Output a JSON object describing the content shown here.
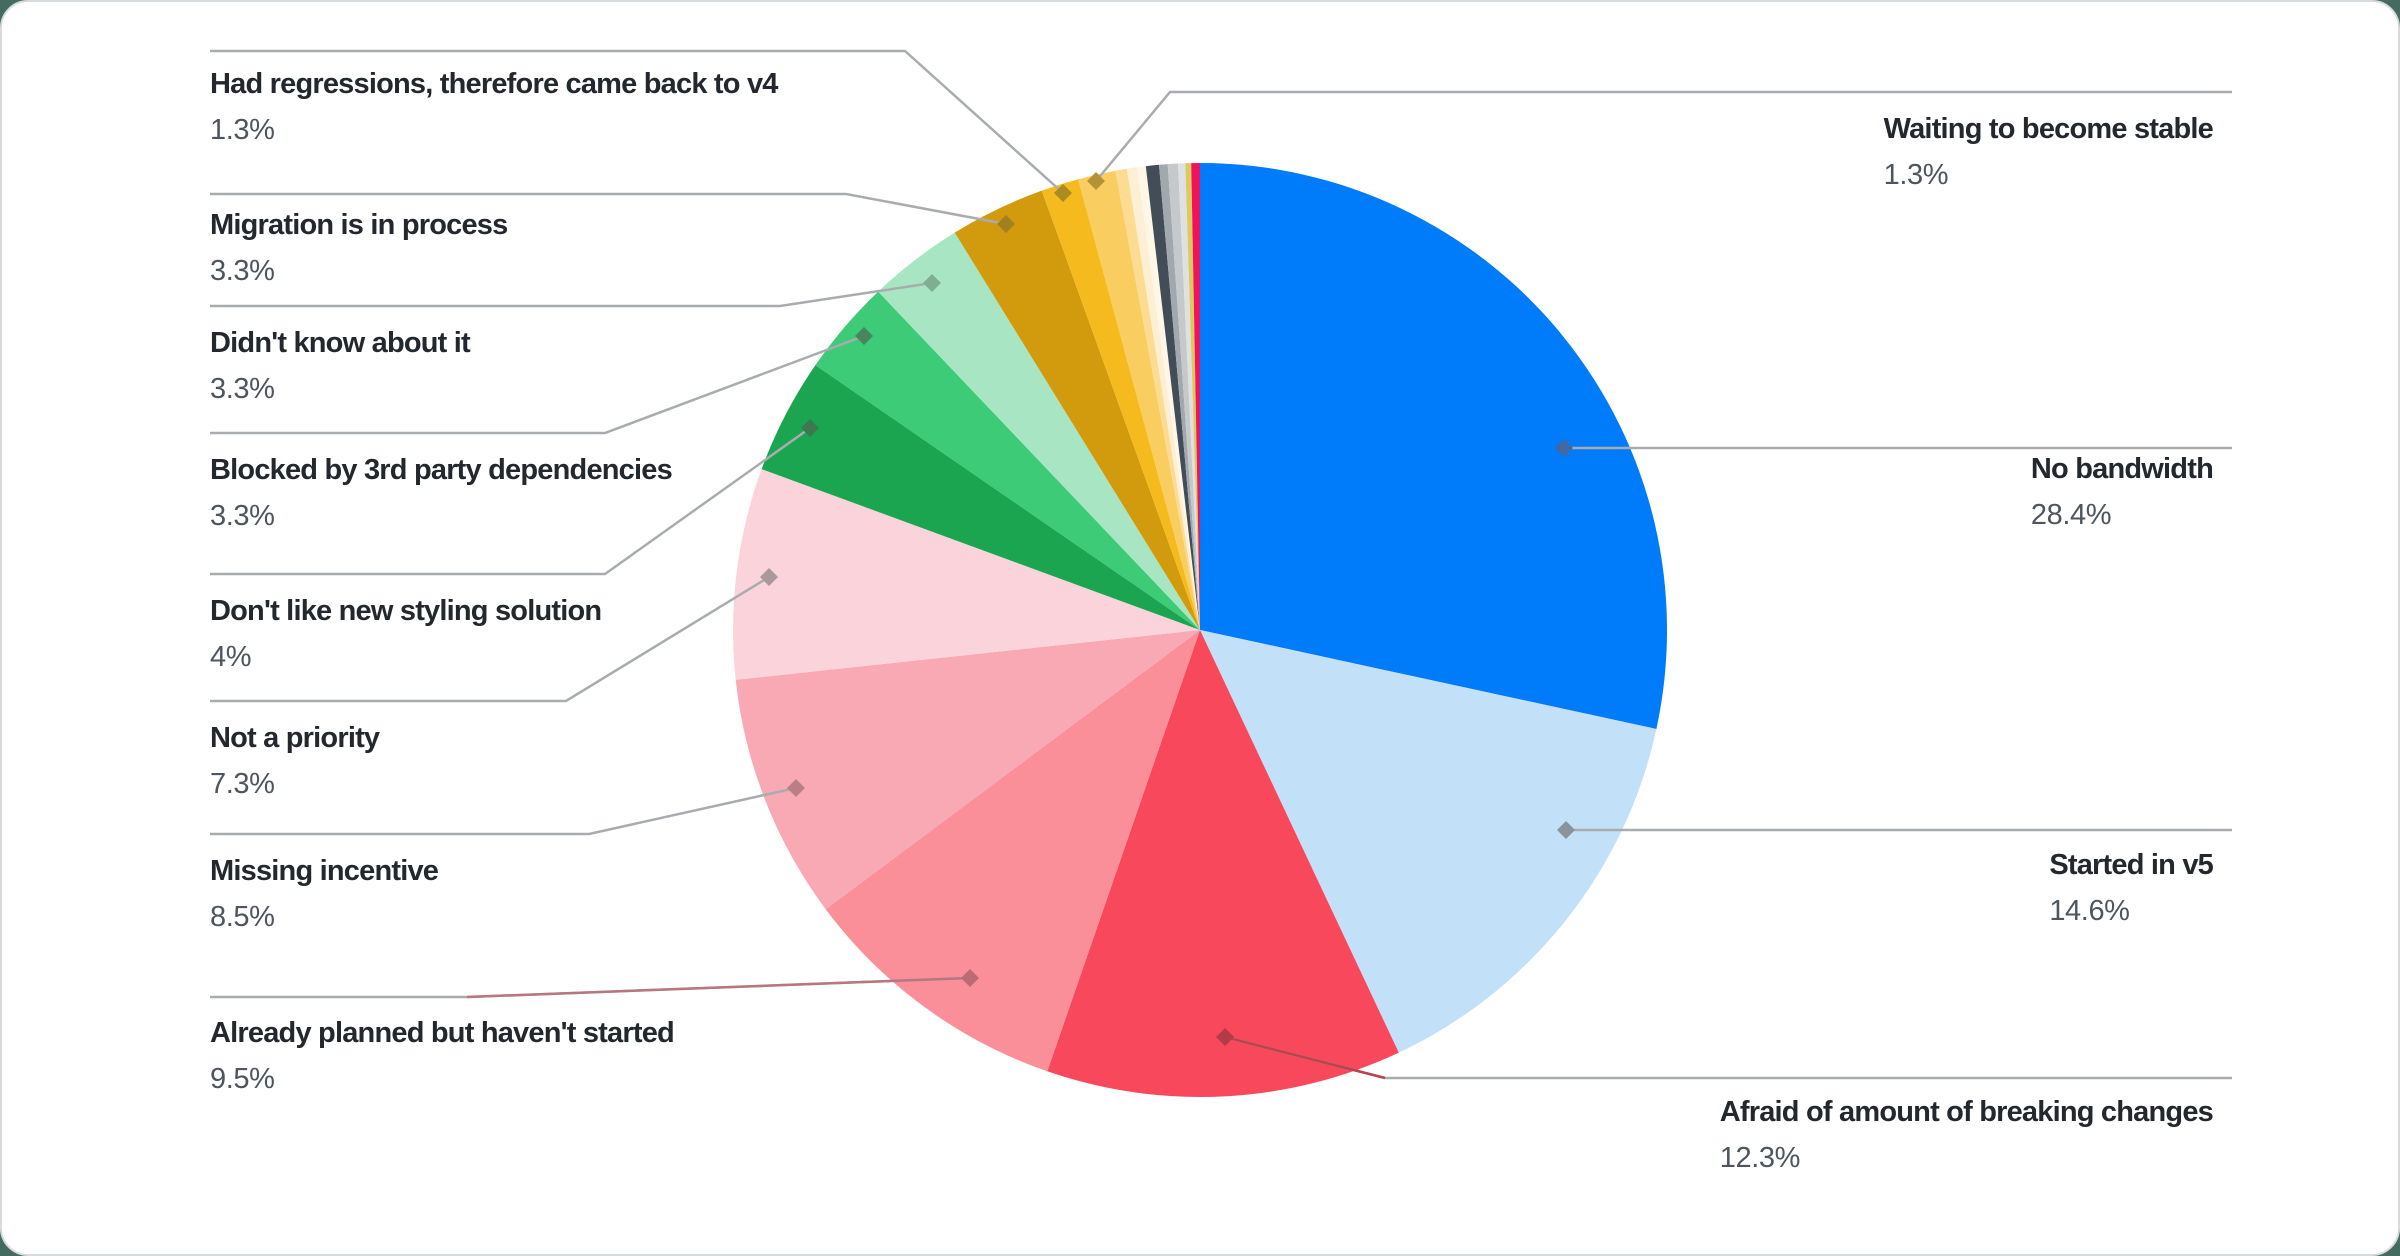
{
  "chart_data": {
    "type": "pie",
    "title": "",
    "legend_position": "none",
    "start_angle_deg": 0,
    "direction": "clockwise",
    "slices": [
      {
        "label": "No bandwidth",
        "pct": "28.4%",
        "value": 28.4,
        "color": "#007BFA",
        "marker": "#44679F"
      },
      {
        "label": "Started in v5",
        "pct": "14.6%",
        "value": 14.6,
        "color": "#C3E0F9",
        "marker": "#8A939B"
      },
      {
        "label": "Afraid of amount of breaking changes",
        "pct": "12.3%",
        "value": 12.3,
        "color": "#F8485B",
        "marker": "#B13B47"
      },
      {
        "label": "Already planned but haven't started",
        "pct": "9.5%",
        "value": 9.5,
        "color": "#FA8F99",
        "marker": "#BA6B74"
      },
      {
        "label": "Missing incentive",
        "pct": "8.5%",
        "value": 8.5,
        "color": "#F9A9B3",
        "marker": "#B97F86"
      },
      {
        "label": "Not a priority",
        "pct": "7.3%",
        "value": 7.3,
        "color": "#FBD3DA",
        "marker": "#AB989D"
      },
      {
        "label": "Don't like new styling solution",
        "pct": "4%",
        "value": 4,
        "color": "#1CA551",
        "marker": "#3E7851"
      },
      {
        "label": "Blocked by 3rd party dependencies",
        "pct": "3.3%",
        "value": 3.3,
        "color": "#3DCB77",
        "marker": "#4A8560"
      },
      {
        "label": "Didn't know about it",
        "pct": "3.3%",
        "value": 3.3,
        "color": "#A8E6C3",
        "marker": "#7FAF93"
      },
      {
        "label": "Migration is in process",
        "pct": "3.3%",
        "value": 3.3,
        "color": "#D29B0D",
        "marker": "#A3801F"
      },
      {
        "label": "Had regressions, therefore came back to v4",
        "pct": "1.3%",
        "value": 1.3,
        "color": "#F5BB1E",
        "marker": "#AB8A20"
      },
      {
        "label": "Waiting to become stable",
        "pct": "1.3%",
        "value": 1.3,
        "color": "#FACD60",
        "marker": "#B39334"
      },
      {
        "label": "",
        "pct": "",
        "value": 0.4,
        "color": "#FBDC92"
      },
      {
        "label": "",
        "pct": "",
        "value": 0.35,
        "color": "#FCEFD3"
      },
      {
        "label": "",
        "pct": "",
        "value": 0.3,
        "color": "#FEF6E7"
      },
      {
        "label": "",
        "pct": "",
        "value": 0.45,
        "color": "#434D57"
      },
      {
        "label": "",
        "pct": "",
        "value": 0.3,
        "color": "#A2A9AE"
      },
      {
        "label": "",
        "pct": "",
        "value": 0.35,
        "color": "#C5C9CC"
      },
      {
        "label": "",
        "pct": "",
        "value": 0.25,
        "color": "#DEE0E2"
      },
      {
        "label": "",
        "pct": "",
        "value": 0.2,
        "color": "#D9CB5F"
      },
      {
        "label": "",
        "pct": "",
        "value": 0.3,
        "color": "#F2115B"
      }
    ]
  },
  "styles": {
    "label_color": "#23282E",
    "percent_color": "#4D565F",
    "leader_color": "#A9ACAF",
    "card_border": "#D8DBDD",
    "card_bg": "#FFFFFF",
    "page_bg": "#456B60"
  }
}
